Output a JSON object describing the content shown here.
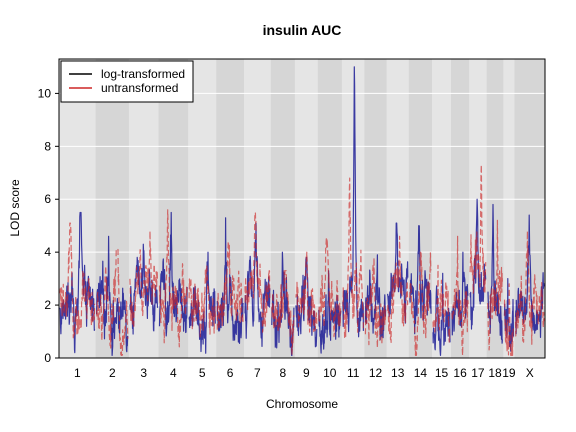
{
  "chart_data": {
    "type": "line",
    "title": "insulin AUC",
    "xlabel": "Chromosome",
    "ylabel": "LOD score",
    "ylim": [
      0,
      11.3
    ],
    "yticks": [
      0,
      2,
      4,
      6,
      8,
      10
    ],
    "legend_position": "top-left",
    "chromosomes": [
      {
        "name": "1",
        "length": 1.98
      },
      {
        "name": "2",
        "length": 1.8
      },
      {
        "name": "3",
        "length": 1.6
      },
      {
        "name": "4",
        "length": 1.6
      },
      {
        "name": "5",
        "length": 1.52
      },
      {
        "name": "6",
        "length": 1.5
      },
      {
        "name": "7",
        "length": 1.45
      },
      {
        "name": "8",
        "length": 1.3
      },
      {
        "name": "9",
        "length": 1.24
      },
      {
        "name": "10",
        "length": 1.3
      },
      {
        "name": "11",
        "length": 1.22
      },
      {
        "name": "12",
        "length": 1.2
      },
      {
        "name": "13",
        "length": 1.2
      },
      {
        "name": "14",
        "length": 1.25
      },
      {
        "name": "15",
        "length": 1.03
      },
      {
        "name": "16",
        "length": 0.98
      },
      {
        "name": "17",
        "length": 0.95
      },
      {
        "name": "18",
        "length": 0.9
      },
      {
        "name": "19",
        "length": 0.6
      },
      {
        "name": "X",
        "length": 1.65
      }
    ],
    "series": [
      {
        "name": "log-transformed",
        "color": "#00008b",
        "opacity": 0.75,
        "dash": "none",
        "chrom_peaks": [
          5.5,
          4.6,
          4.3,
          5.5,
          4.0,
          5.3,
          5.1,
          4.0,
          3.8,
          3.3,
          11.0,
          3.9,
          5.1,
          5.0,
          3.2,
          4.0,
          6.0,
          5.8,
          3.0,
          5.4
        ],
        "chrom_base": [
          2.0,
          1.6,
          2.2,
          2.0,
          1.8,
          2.0,
          2.3,
          1.5,
          1.8,
          1.4,
          2.0,
          1.6,
          2.5,
          2.4,
          1.5,
          1.7,
          2.5,
          2.2,
          1.3,
          1.6
        ]
      },
      {
        "name": "untransformed",
        "color": "#cd2626",
        "opacity": 0.65,
        "dash": "6,3",
        "chrom_peaks": [
          5.1,
          4.1,
          4.8,
          5.6,
          3.5,
          4.4,
          5.5,
          3.3,
          4.0,
          4.5,
          6.8,
          3.8,
          4.6,
          4.0,
          3.5,
          4.6,
          7.3,
          5.2,
          2.8,
          4.8
        ],
        "chrom_base": [
          1.9,
          1.7,
          2.3,
          2.3,
          1.9,
          2.0,
          2.1,
          1.6,
          2.0,
          1.7,
          2.2,
          1.6,
          2.3,
          2.2,
          1.6,
          2.0,
          2.8,
          2.3,
          1.4,
          1.7
        ]
      }
    ],
    "background": {
      "light": "#e5e5e5",
      "dark": "#d6d6d6",
      "grid": "#ffffff"
    }
  }
}
